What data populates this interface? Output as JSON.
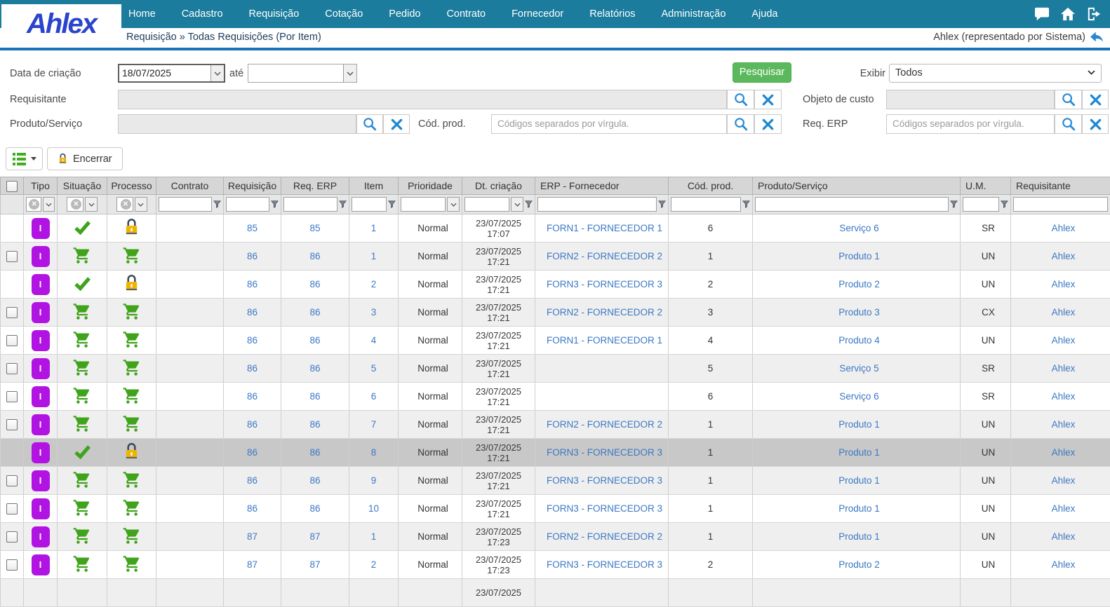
{
  "brand": {
    "logo_text": "Ahlex"
  },
  "nav": {
    "items": [
      "Home",
      "Cadastro",
      "Requisição",
      "Cotação",
      "Pedido",
      "Contrato",
      "Fornecedor",
      "Relatórios",
      "Administração",
      "Ajuda"
    ],
    "icons": [
      "chat-icon",
      "home-icon",
      "logout-icon"
    ]
  },
  "breadcrumb": {
    "path": "Requisição » Todas Requisições (Por Item)",
    "user_label": "Ahlex (representado por Sistema)"
  },
  "filters": {
    "data_criacao_label": "Data de criação",
    "data_criacao_value": "18/07/2025",
    "ate_label": "até",
    "ate_value": "",
    "pesquisar_label": "Pesquisar",
    "exibir_label": "Exibir",
    "exibir_value": "Todos",
    "requisitante_label": "Requisitante",
    "requisitante_value": "",
    "objeto_custo_label": "Objeto de custo",
    "objeto_custo_value": "",
    "produto_servico_label": "Produto/Serviço",
    "produto_servico_value": "",
    "cod_prod_label": "Cód. prod.",
    "cod_prod_placeholder": "Códigos separados por vírgula.",
    "req_erp_label": "Req. ERP",
    "req_erp_placeholder": "Códigos separados por vírgula."
  },
  "toolbar": {
    "encerrar_label": "Encerrar"
  },
  "table": {
    "columns": [
      "",
      "Tipo",
      "Situação",
      "Processo",
      "Contrato",
      "Requisição",
      "Req. ERP",
      "Item",
      "Prioridade",
      "Dt. criação",
      "ERP - Fornecedor",
      "Cód. prod.",
      "Produto/Serviço",
      "U.M.",
      "Requisitante"
    ],
    "rows": [
      {
        "checkbox": false,
        "selected": false,
        "tipo": "I",
        "situacao": "check",
        "processo": "lock",
        "contrato": "",
        "requisicao": "85",
        "req_erp": "85",
        "item": "1",
        "prioridade": "Normal",
        "dt_date": "23/07/2025",
        "dt_time": "17:07",
        "erp_fornecedor": "FORN1 - FORNECEDOR 1",
        "cod_prod": "6",
        "produto_servico": "Serviço 6",
        "um": "SR",
        "requisitante": "Ahlex"
      },
      {
        "checkbox": true,
        "selected": false,
        "tipo": "I",
        "situacao": "cart",
        "processo": "cart",
        "contrato": "",
        "requisicao": "86",
        "req_erp": "86",
        "item": "1",
        "prioridade": "Normal",
        "dt_date": "23/07/2025",
        "dt_time": "17:21",
        "erp_fornecedor": "FORN2 - FORNECEDOR 2",
        "cod_prod": "1",
        "produto_servico": "Produto 1",
        "um": "UN",
        "requisitante": "Ahlex"
      },
      {
        "checkbox": false,
        "selected": false,
        "tipo": "I",
        "situacao": "check",
        "processo": "lock",
        "contrato": "",
        "requisicao": "86",
        "req_erp": "86",
        "item": "2",
        "prioridade": "Normal",
        "dt_date": "23/07/2025",
        "dt_time": "17:21",
        "erp_fornecedor": "FORN3 - FORNECEDOR 3",
        "cod_prod": "2",
        "produto_servico": "Produto 2",
        "um": "UN",
        "requisitante": "Ahlex"
      },
      {
        "checkbox": true,
        "selected": false,
        "tipo": "I",
        "situacao": "cart",
        "processo": "cart",
        "contrato": "",
        "requisicao": "86",
        "req_erp": "86",
        "item": "3",
        "prioridade": "Normal",
        "dt_date": "23/07/2025",
        "dt_time": "17:21",
        "erp_fornecedor": "FORN2 - FORNECEDOR 2",
        "cod_prod": "3",
        "produto_servico": "Produto 3",
        "um": "CX",
        "requisitante": "Ahlex"
      },
      {
        "checkbox": true,
        "selected": false,
        "tipo": "I",
        "situacao": "cart",
        "processo": "cart",
        "contrato": "",
        "requisicao": "86",
        "req_erp": "86",
        "item": "4",
        "prioridade": "Normal",
        "dt_date": "23/07/2025",
        "dt_time": "17:21",
        "erp_fornecedor": "FORN1 - FORNECEDOR 1",
        "cod_prod": "4",
        "produto_servico": "Produto 4",
        "um": "UN",
        "requisitante": "Ahlex"
      },
      {
        "checkbox": true,
        "selected": false,
        "tipo": "I",
        "situacao": "cart",
        "processo": "cart",
        "contrato": "",
        "requisicao": "86",
        "req_erp": "86",
        "item": "5",
        "prioridade": "Normal",
        "dt_date": "23/07/2025",
        "dt_time": "17:21",
        "erp_fornecedor": "",
        "cod_prod": "5",
        "produto_servico": "Serviço 5",
        "um": "SR",
        "requisitante": "Ahlex"
      },
      {
        "checkbox": true,
        "selected": false,
        "tipo": "I",
        "situacao": "cart",
        "processo": "cart",
        "contrato": "",
        "requisicao": "86",
        "req_erp": "86",
        "item": "6",
        "prioridade": "Normal",
        "dt_date": "23/07/2025",
        "dt_time": "17:21",
        "erp_fornecedor": "",
        "cod_prod": "6",
        "produto_servico": "Serviço 6",
        "um": "SR",
        "requisitante": "Ahlex"
      },
      {
        "checkbox": true,
        "selected": false,
        "tipo": "I",
        "situacao": "cart",
        "processo": "cart",
        "contrato": "",
        "requisicao": "86",
        "req_erp": "86",
        "item": "7",
        "prioridade": "Normal",
        "dt_date": "23/07/2025",
        "dt_time": "17:21",
        "erp_fornecedor": "FORN2 - FORNECEDOR 2",
        "cod_prod": "1",
        "produto_servico": "Produto 1",
        "um": "UN",
        "requisitante": "Ahlex"
      },
      {
        "checkbox": false,
        "selected": true,
        "tipo": "I",
        "situacao": "check",
        "processo": "lock",
        "contrato": "",
        "requisicao": "86",
        "req_erp": "86",
        "item": "8",
        "prioridade": "Normal",
        "dt_date": "23/07/2025",
        "dt_time": "17:21",
        "erp_fornecedor": "FORN3 - FORNECEDOR 3",
        "cod_prod": "1",
        "produto_servico": "Produto 1",
        "um": "UN",
        "requisitante": "Ahlex"
      },
      {
        "checkbox": true,
        "selected": false,
        "tipo": "I",
        "situacao": "cart",
        "processo": "cart",
        "contrato": "",
        "requisicao": "86",
        "req_erp": "86",
        "item": "9",
        "prioridade": "Normal",
        "dt_date": "23/07/2025",
        "dt_time": "17:21",
        "erp_fornecedor": "FORN3 - FORNECEDOR 3",
        "cod_prod": "1",
        "produto_servico": "Produto 1",
        "um": "UN",
        "requisitante": "Ahlex"
      },
      {
        "checkbox": true,
        "selected": false,
        "tipo": "I",
        "situacao": "cart",
        "processo": "cart",
        "contrato": "",
        "requisicao": "86",
        "req_erp": "86",
        "item": "10",
        "prioridade": "Normal",
        "dt_date": "23/07/2025",
        "dt_time": "17:21",
        "erp_fornecedor": "FORN3 - FORNECEDOR 3",
        "cod_prod": "1",
        "produto_servico": "Produto 1",
        "um": "UN",
        "requisitante": "Ahlex"
      },
      {
        "checkbox": true,
        "selected": false,
        "tipo": "I",
        "situacao": "cart",
        "processo": "cart",
        "contrato": "",
        "requisicao": "87",
        "req_erp": "87",
        "item": "1",
        "prioridade": "Normal",
        "dt_date": "23/07/2025",
        "dt_time": "17:23",
        "erp_fornecedor": "FORN2 - FORNECEDOR 2",
        "cod_prod": "1",
        "produto_servico": "Produto 1",
        "um": "UN",
        "requisitante": "Ahlex"
      },
      {
        "checkbox": true,
        "selected": false,
        "tipo": "I",
        "situacao": "cart",
        "processo": "cart",
        "contrato": "",
        "requisicao": "87",
        "req_erp": "87",
        "item": "2",
        "prioridade": "Normal",
        "dt_date": "23/07/2025",
        "dt_time": "17:23",
        "erp_fornecedor": "FORN3 - FORNECEDOR 3",
        "cod_prod": "2",
        "produto_servico": "Produto 2",
        "um": "UN",
        "requisitante": "Ahlex"
      }
    ],
    "partial_row": {
      "dt_date": "23/07/2025"
    }
  },
  "colors": {
    "nav_teal": "#1b7c9d",
    "divider_blue": "#1d73b9",
    "logo_blue": "#2b44cc",
    "link_blue": "#3b78c4",
    "icon_green": "#3fa31c",
    "button_green": "#5cb85c",
    "lock_gold": "#f2b200",
    "tipo_purple": "#b113e2",
    "selected_row_gray": "#c8c8c8"
  }
}
